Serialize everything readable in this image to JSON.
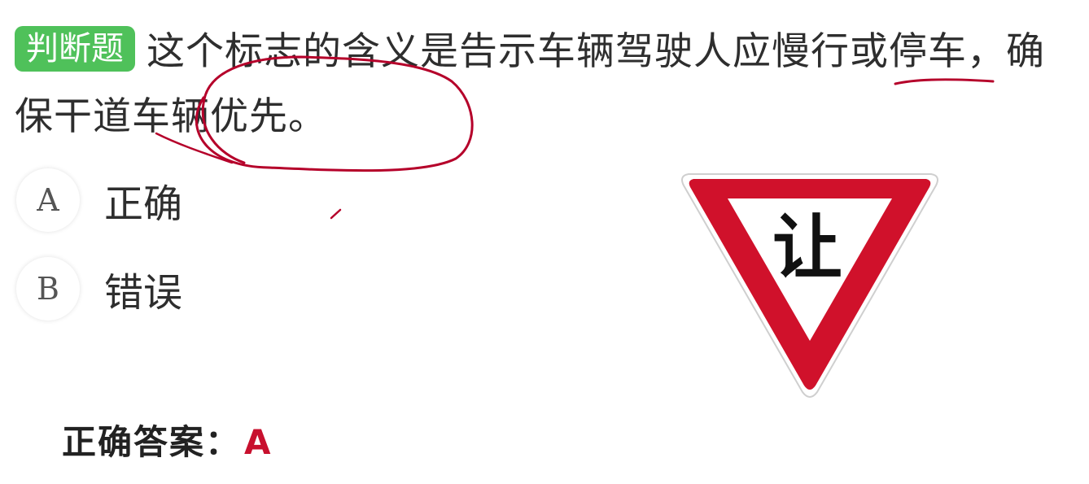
{
  "question": {
    "type_badge": "判断题",
    "text": "这个标志的含义是告示车辆驾驶人应慢行或停车，确保干道车辆优先。"
  },
  "options": [
    {
      "letter": "A",
      "label": "正确"
    },
    {
      "letter": "B",
      "label": "错误"
    }
  ],
  "sign": {
    "icon": "yield-sign-icon",
    "character": "让",
    "border_color": "#d0112b",
    "fill_color": "#ffffff"
  },
  "answer": {
    "label": "正确答案：",
    "value": "A"
  },
  "colors": {
    "badge": "#4fc15a",
    "answer_value": "#c8102e",
    "annotation_ink": "#b5002a"
  }
}
